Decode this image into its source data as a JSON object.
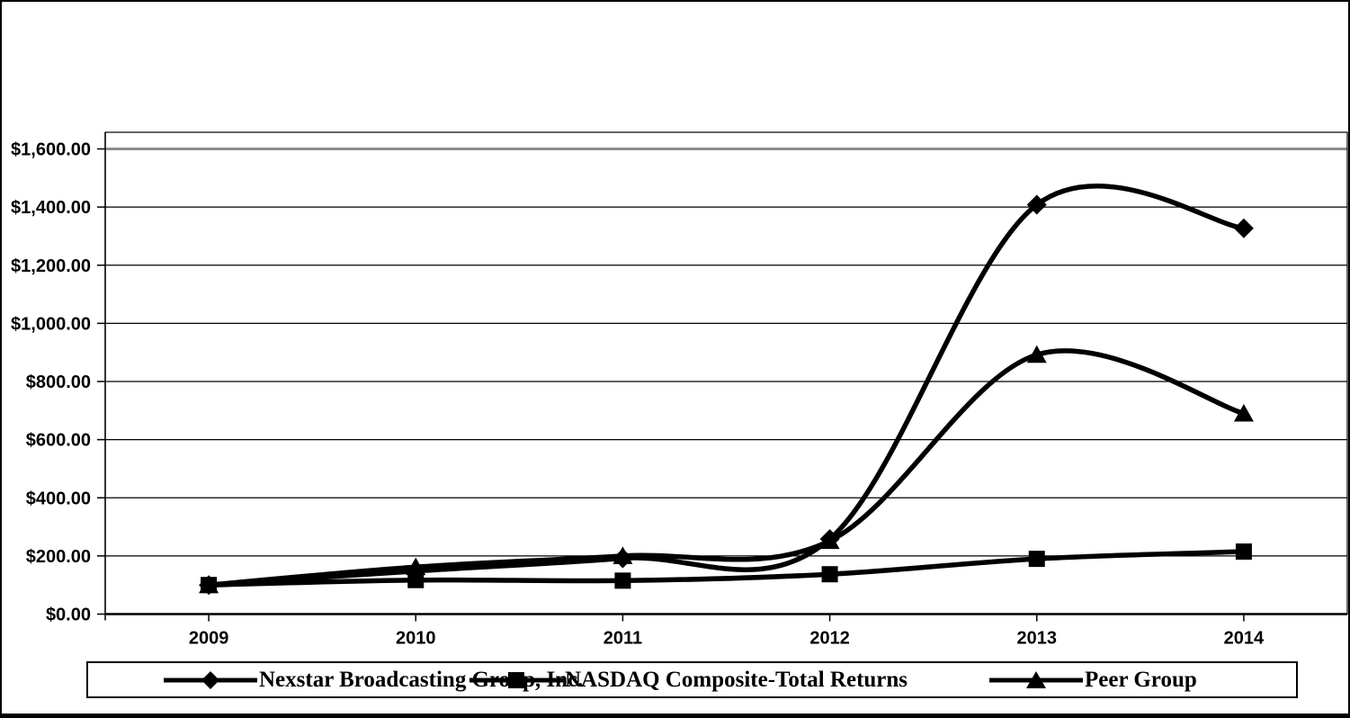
{
  "chart_data": {
    "type": "line",
    "smoothed": true,
    "title": "",
    "xlabel": "",
    "ylabel": "",
    "categories": [
      "2009",
      "2010",
      "2011",
      "2012",
      "2013",
      "2014"
    ],
    "series": [
      {
        "name": "Nexstar Broadcasting Group, Inc.",
        "marker": "diamond",
        "color": "#000000",
        "values": [
          100,
          148,
          192,
          258,
          1408,
          1327
        ]
      },
      {
        "name": "NASDAQ Composite-Total Returns",
        "marker": "square",
        "color": "#000000",
        "values": [
          100,
          117,
          115,
          137,
          190,
          215
        ]
      },
      {
        "name": "Peer Group",
        "marker": "triangle",
        "color": "#000000",
        "values": [
          100,
          162,
          200,
          252,
          892,
          690
        ]
      }
    ],
    "ylim": [
      0,
      1600
    ],
    "y_tick_step": 200,
    "y_tick_labels": [
      "$0.00",
      "$200.00",
      "$400.00",
      "$600.00",
      "$800.00",
      "$1,000.00",
      "$1,200.00",
      "$1,400.00",
      "$1,600.00"
    ],
    "grid": "horizontal",
    "legend_position": "bottom",
    "colors": {
      "series": "#000000",
      "gridline": "#000000",
      "top_gridline": "#8c8c8c",
      "axis": "#000000",
      "plot_border": "#000000",
      "background": "#ffffff"
    }
  }
}
